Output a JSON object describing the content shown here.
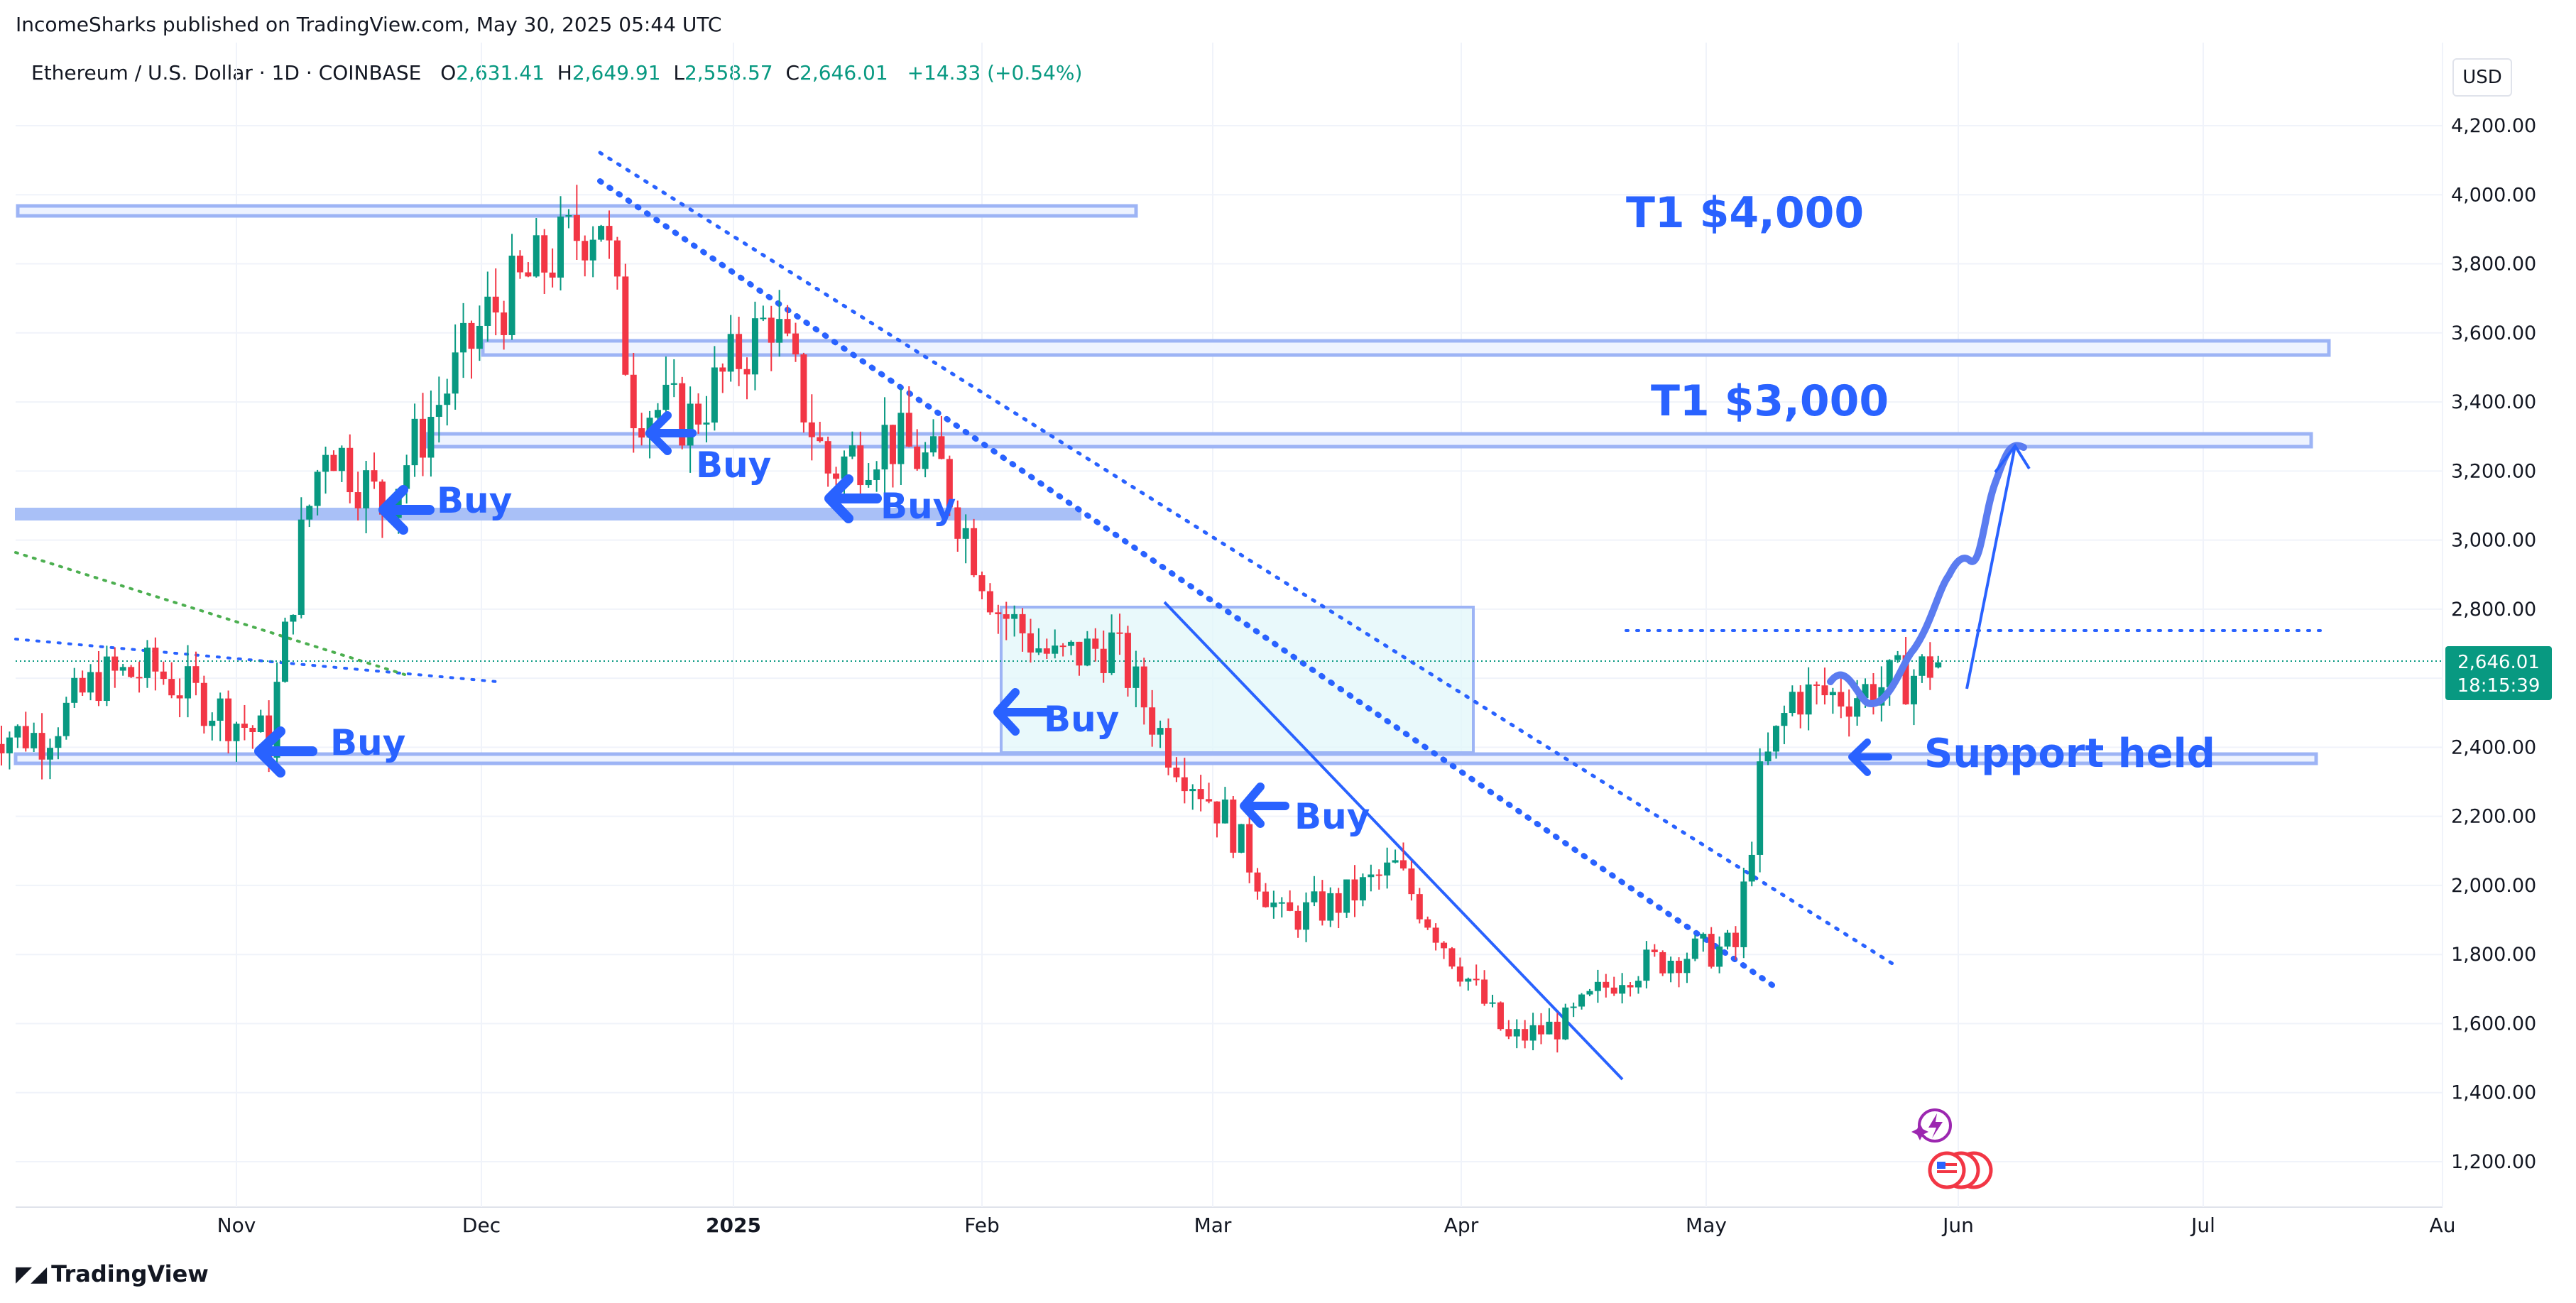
{
  "publisher_line": "IncomeSharks published on TradingView.com, May 30, 2025 05:44 UTC",
  "legend": {
    "symbol": "Ethereum / U.S. Dollar · 1D · COINBASE",
    "open_label": "O",
    "open": "2,631.41",
    "high_label": "H",
    "high": "2,649.91",
    "low_label": "L",
    "low": "2,558.57",
    "close_label": "C",
    "close": "2,646.01",
    "change": "+14.33 (+0.54%)"
  },
  "currency_button": "USD",
  "last_price": {
    "price": "2,646.01",
    "countdown": "18:15:39"
  },
  "brand": "TradingView",
  "colors": {
    "up": "#089981",
    "down": "#f23645",
    "annotation": "#2962ff",
    "zone_fill": "#e0f7fa"
  },
  "chart_data": {
    "type": "candlestick",
    "ylim": [
      1100,
      4300
    ],
    "y_ticks": [
      "1,200.00",
      "1,400.00",
      "1,600.00",
      "1,800.00",
      "2,000.00",
      "2,200.00",
      "2,400.00",
      "2,600.00",
      "2,800.00",
      "3,000.00",
      "3,200.00",
      "3,400.00",
      "3,600.00",
      "3,800.00",
      "4,000.00",
      "4,200.00"
    ],
    "x_ticks": [
      "Nov",
      "Dec",
      "2025",
      "Feb",
      "Mar",
      "Apr",
      "May",
      "Jun",
      "Jul",
      "Au"
    ],
    "annotations": [
      {
        "text": "T1 $4,000"
      },
      {
        "text": "T1 $3,000"
      },
      {
        "text": "Buy"
      },
      {
        "text": "Buy"
      },
      {
        "text": "Buy"
      },
      {
        "text": "Buy"
      },
      {
        "text": "Buy"
      },
      {
        "text": "Buy"
      },
      {
        "text": "Support held"
      }
    ],
    "key_levels": [
      {
        "label": "resistance",
        "range": [
          3960,
          3990
        ]
      },
      {
        "label": "resistance",
        "range": [
          3540,
          3580
        ]
      },
      {
        "label": "resistance",
        "range": [
          3270,
          3310
        ]
      },
      {
        "label": "support",
        "range": [
          3080,
          3100
        ]
      },
      {
        "label": "support",
        "range": [
          2360,
          2390
        ]
      }
    ],
    "close_approx": [
      {
        "date": "2024-10-01",
        "close": 2450
      },
      {
        "date": "2024-10-08",
        "close": 2430
      },
      {
        "date": "2024-10-15",
        "close": 2600
      },
      {
        "date": "2024-10-22",
        "close": 2620
      },
      {
        "date": "2024-10-29",
        "close": 2520
      },
      {
        "date": "2024-11-05",
        "close": 2420
      },
      {
        "date": "2024-11-09",
        "close": 3000
      },
      {
        "date": "2024-11-12",
        "close": 3300
      },
      {
        "date": "2024-11-19",
        "close": 3100
      },
      {
        "date": "2024-11-26",
        "close": 3400
      },
      {
        "date": "2024-12-02",
        "close": 3650
      },
      {
        "date": "2024-12-09",
        "close": 3800
      },
      {
        "date": "2024-12-16",
        "close": 3950
      },
      {
        "date": "2024-12-20",
        "close": 3400
      },
      {
        "date": "2024-12-27",
        "close": 3350
      },
      {
        "date": "2025-01-06",
        "close": 3650
      },
      {
        "date": "2025-01-13",
        "close": 3200
      },
      {
        "date": "2025-01-20",
        "close": 3300
      },
      {
        "date": "2025-01-27",
        "close": 3200
      },
      {
        "date": "2025-02-03",
        "close": 2800
      },
      {
        "date": "2025-02-10",
        "close": 2650
      },
      {
        "date": "2025-02-17",
        "close": 2700
      },
      {
        "date": "2025-02-24",
        "close": 2400
      },
      {
        "date": "2025-03-03",
        "close": 2200
      },
      {
        "date": "2025-03-10",
        "close": 1900
      },
      {
        "date": "2025-03-17",
        "close": 1950
      },
      {
        "date": "2025-03-24",
        "close": 2050
      },
      {
        "date": "2025-03-31",
        "close": 1800
      },
      {
        "date": "2025-04-07",
        "close": 1550
      },
      {
        "date": "2025-04-14",
        "close": 1600
      },
      {
        "date": "2025-04-21",
        "close": 1750
      },
      {
        "date": "2025-04-28",
        "close": 1800
      },
      {
        "date": "2025-05-05",
        "close": 1820
      },
      {
        "date": "2025-05-08",
        "close": 2300
      },
      {
        "date": "2025-05-12",
        "close": 2550
      },
      {
        "date": "2025-05-19",
        "close": 2550
      },
      {
        "date": "2025-05-26",
        "close": 2600
      },
      {
        "date": "2025-05-30",
        "close": 2646.01
      }
    ]
  }
}
